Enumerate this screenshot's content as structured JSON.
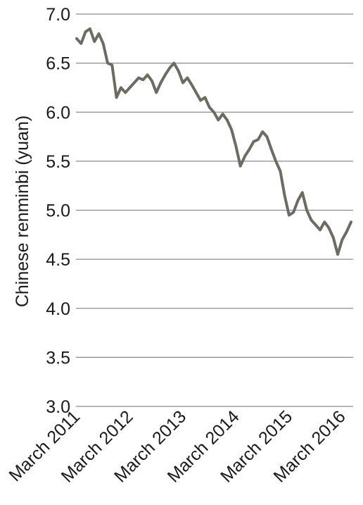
{
  "chart_data": {
    "type": "line",
    "title": "",
    "xlabel": "",
    "ylabel": "Chinese renminbi (yuan)",
    "ylim": [
      3.0,
      7.0
    ],
    "yticks": [
      3.0,
      3.5,
      4.0,
      4.5,
      5.0,
      5.5,
      6.0,
      6.5,
      7.0
    ],
    "ytick_labels": [
      "3.0",
      "3.5",
      "4.0",
      "4.5",
      "5.0",
      "5.5",
      "6.0",
      "6.5",
      "7.0"
    ],
    "xlim": [
      "2011-03",
      "2016-05"
    ],
    "xticks": [
      "2011-03",
      "2012-03",
      "2013-03",
      "2014-03",
      "2015-03",
      "2016-03"
    ],
    "xtick_labels": [
      "March 2011",
      "March 2012",
      "March 2013",
      "March 2014",
      "March 2015",
      "March 2016"
    ],
    "grid": true,
    "legend": "none",
    "series": [
      {
        "color": "#6e6b62",
        "x": [
          "2011-03",
          "2011-04",
          "2011-05",
          "2011-06",
          "2011-07",
          "2011-08",
          "2011-09",
          "2011-10",
          "2011-11",
          "2011-12",
          "2012-01",
          "2012-02",
          "2012-03",
          "2012-04",
          "2012-05",
          "2012-06",
          "2012-07",
          "2012-08",
          "2012-09",
          "2012-10",
          "2012-11",
          "2012-12",
          "2013-01",
          "2013-02",
          "2013-03",
          "2013-04",
          "2013-05",
          "2013-06",
          "2013-07",
          "2013-08",
          "2013-09",
          "2013-10",
          "2013-11",
          "2013-12",
          "2014-01",
          "2014-02",
          "2014-03",
          "2014-04",
          "2014-05",
          "2014-06",
          "2014-07",
          "2014-08",
          "2014-09",
          "2014-10",
          "2014-11",
          "2014-12",
          "2015-01",
          "2015-02",
          "2015-03",
          "2015-04",
          "2015-05",
          "2015-06",
          "2015-07",
          "2015-08",
          "2015-09",
          "2015-10",
          "2015-11",
          "2015-12",
          "2016-01",
          "2016-02",
          "2016-03",
          "2016-04",
          "2016-05"
        ],
        "values": [
          6.75,
          6.7,
          6.82,
          6.85,
          6.72,
          6.8,
          6.7,
          6.5,
          6.48,
          6.15,
          6.25,
          6.2,
          6.25,
          6.3,
          6.35,
          6.33,
          6.38,
          6.32,
          6.2,
          6.3,
          6.38,
          6.45,
          6.5,
          6.42,
          6.3,
          6.35,
          6.28,
          6.2,
          6.12,
          6.15,
          6.05,
          6.0,
          5.92,
          5.98,
          5.92,
          5.82,
          5.65,
          5.45,
          5.55,
          5.62,
          5.7,
          5.72,
          5.8,
          5.75,
          5.62,
          5.5,
          5.4,
          5.15,
          4.95,
          4.98,
          5.1,
          5.18,
          5.0,
          4.9,
          4.85,
          4.8,
          4.88,
          4.82,
          4.72,
          4.55,
          4.7,
          4.78,
          4.88
        ]
      }
    ]
  }
}
